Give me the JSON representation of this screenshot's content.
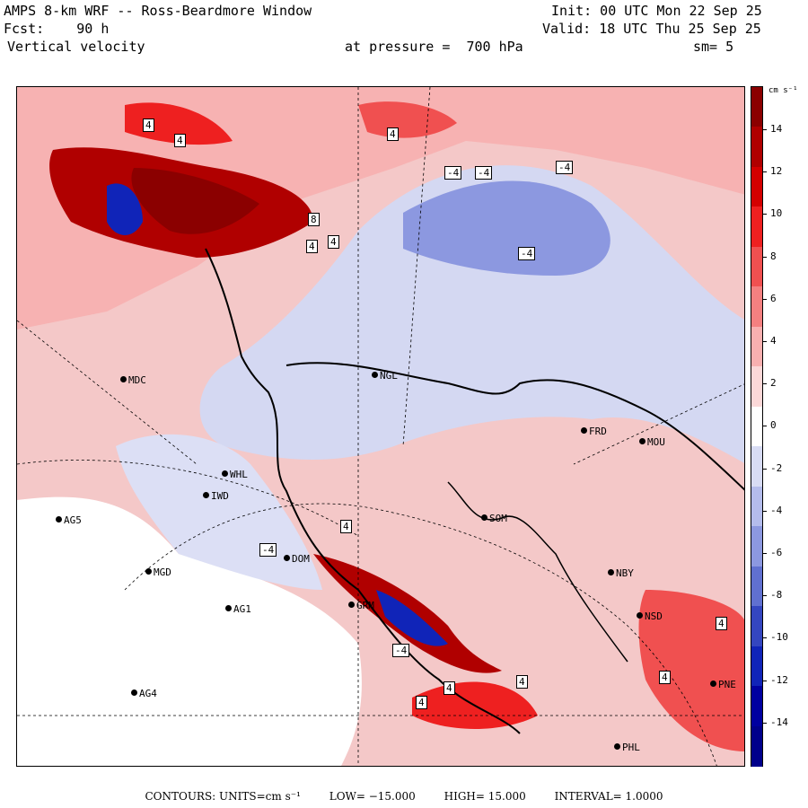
{
  "header": {
    "title": "AMPS 8-km WRF -- Ross-Beardmore Window",
    "init": "Init: 00 UTC Mon 22 Sep 25",
    "forecast": "Fcst:    90 h",
    "valid": "Valid: 18 UTC Thu 25 Sep 25",
    "field": "Vertical velocity",
    "pressure": "at pressure =  700 hPa",
    "smoothing": "sm= 5"
  },
  "colorbar": {
    "units": "cm s⁻¹",
    "ticks": [
      "14",
      "12",
      "10",
      "8",
      "6",
      "4",
      "2",
      "0",
      "-2",
      "-4",
      "-6",
      "-8",
      "-10",
      "-12",
      "-14"
    ],
    "colors": [
      "#8b0000",
      "#b00000",
      "#d40000",
      "#ee2020",
      "#f05050",
      "#f48080",
      "#f8b0b0",
      "#fbd8d8",
      "#ffffff",
      "#d8dcf4",
      "#b4bcec",
      "#8c98e0",
      "#6070d0",
      "#3446c0",
      "#1024b8",
      "#0000a0",
      "#00008b"
    ]
  },
  "stations": [
    {
      "name": "MDC"
    },
    {
      "name": "NGL"
    },
    {
      "name": "FRD"
    },
    {
      "name": "MOU"
    },
    {
      "name": "IWD"
    },
    {
      "name": "WHL"
    },
    {
      "name": "AG5"
    },
    {
      "name": "SOM"
    },
    {
      "name": "MGD"
    },
    {
      "name": "DOM"
    },
    {
      "name": "NBY"
    },
    {
      "name": "AG1"
    },
    {
      "name": "GRM"
    },
    {
      "name": "NSD"
    },
    {
      "name": "AG4"
    },
    {
      "name": "PNE"
    },
    {
      "name": "PHL"
    }
  ],
  "contour_labels": [
    "4",
    "4",
    "8",
    "4",
    "4",
    "-4",
    "-4",
    "-4",
    "-4",
    "4",
    "-4",
    "4",
    "4",
    "-4",
    "4",
    "4",
    "4",
    "4"
  ],
  "footer": {
    "contours": "CONTOURS:  UNITS=cm s⁻¹",
    "low": "LOW= −15.000",
    "high": "HIGH=  15.000",
    "interval": "INTERVAL=   1.0000"
  }
}
